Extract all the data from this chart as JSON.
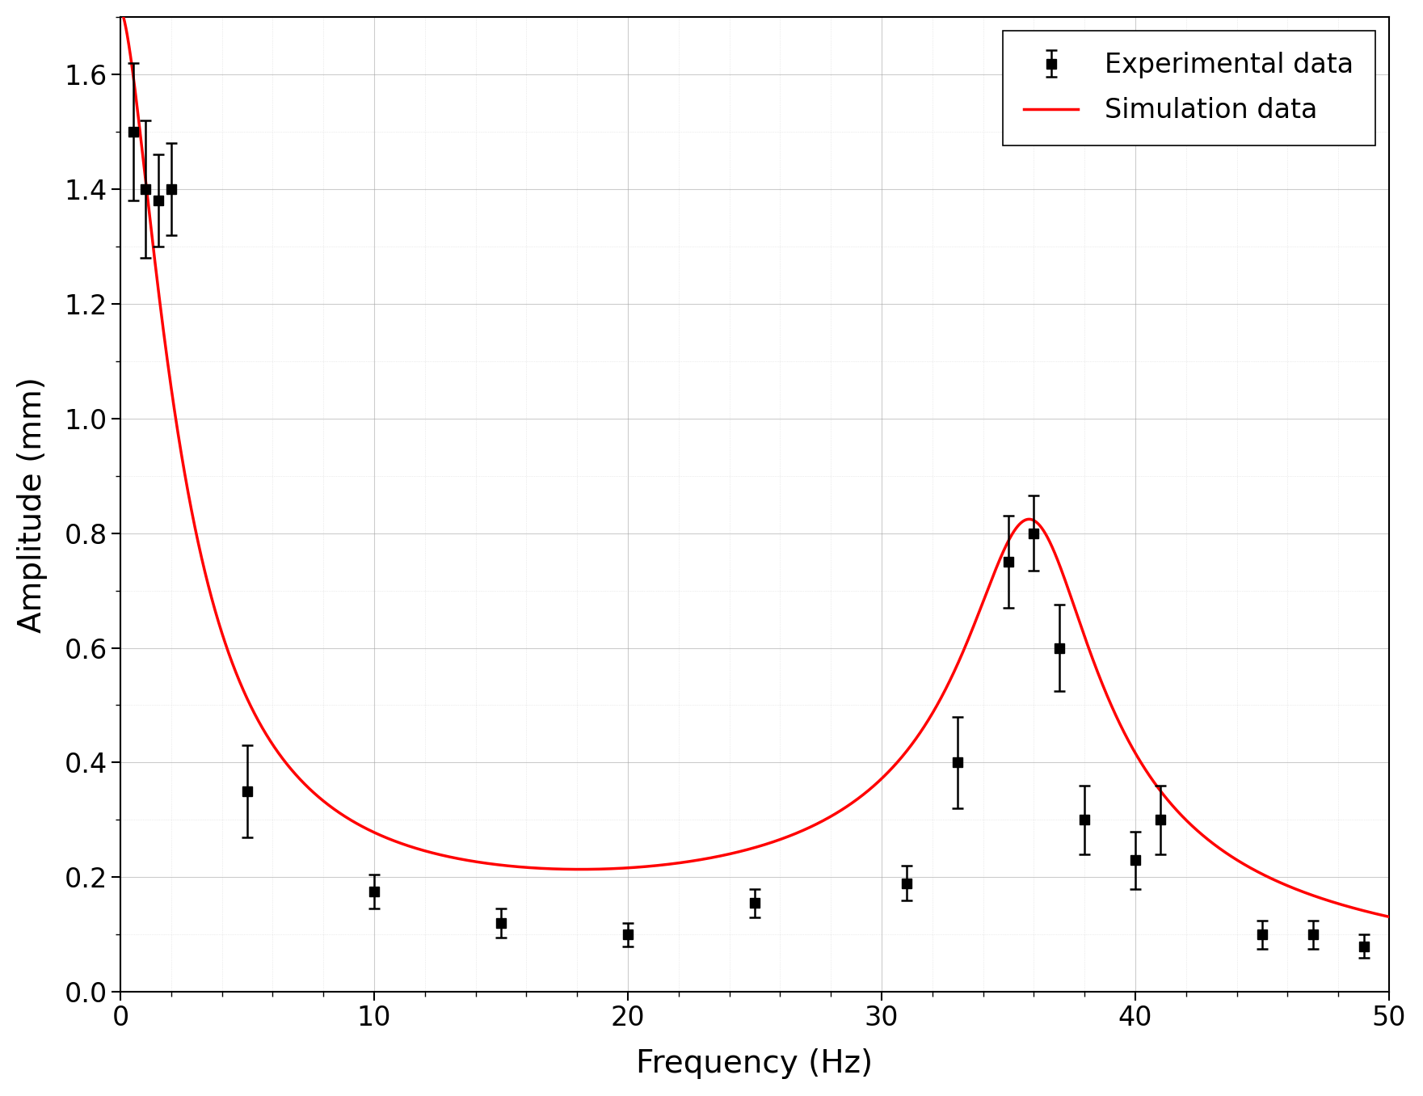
{
  "exp_x": [
    0.5,
    1.0,
    1.5,
    2.0,
    5.0,
    10.0,
    15.0,
    20.0,
    25.0,
    31.0,
    33.0,
    35.0,
    36.0,
    37.0,
    38.0,
    40.0,
    41.0,
    45.0,
    47.0,
    49.0
  ],
  "exp_y": [
    1.5,
    1.4,
    1.38,
    1.4,
    0.35,
    0.175,
    0.12,
    0.1,
    0.155,
    0.19,
    0.4,
    0.75,
    0.8,
    0.6,
    0.3,
    0.23,
    0.3,
    0.1,
    0.1,
    0.08
  ],
  "exp_yerr": [
    0.12,
    0.12,
    0.08,
    0.08,
    0.08,
    0.03,
    0.025,
    0.02,
    0.025,
    0.03,
    0.08,
    0.08,
    0.065,
    0.075,
    0.06,
    0.05,
    0.06,
    0.025,
    0.025,
    0.02
  ],
  "xlabel": "Frequency (Hz)",
  "ylabel": "Amplitude (mm)",
  "xlim": [
    0,
    50
  ],
  "ylim": [
    0.0,
    1.7
  ],
  "yticks": [
    0.0,
    0.2,
    0.4,
    0.6,
    0.8,
    1.0,
    1.2,
    1.4,
    1.6
  ],
  "xticks": [
    0,
    10,
    20,
    30,
    40,
    50
  ],
  "legend_labels": [
    "Experimental data",
    "Simulation data"
  ],
  "marker_color": "#000000",
  "line_color": "#ff0000",
  "background_color": "#ffffff",
  "grid_major_color": "#aaaaaa",
  "grid_minor_color": "#cccccc"
}
